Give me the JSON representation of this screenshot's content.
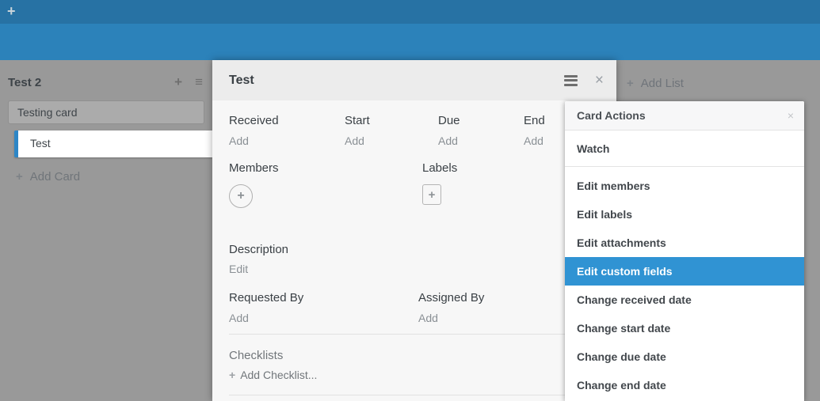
{
  "icons": {
    "plus": "+",
    "menu": "≡",
    "close": "×"
  },
  "board": {
    "list": {
      "title": "Test 2",
      "cards": [
        "Testing card",
        "Test"
      ],
      "add_card_label": "Add Card"
    },
    "add_list_label": "Add List"
  },
  "dialog": {
    "title": "Test",
    "date_fields": [
      {
        "label": "Received",
        "action": "Add"
      },
      {
        "label": "Start",
        "action": "Add"
      },
      {
        "label": "Due",
        "action": "Add"
      },
      {
        "label": "End",
        "action": "Add"
      }
    ],
    "members_label": "Members",
    "labels_label": "Labels",
    "description": {
      "label": "Description",
      "action": "Edit"
    },
    "requested_by": {
      "label": "Requested By",
      "action": "Add"
    },
    "assigned_by": {
      "label": "Assigned By",
      "action": "Add"
    },
    "checklists": {
      "label": "Checklists",
      "action": "Add Checklist..."
    }
  },
  "card_actions": {
    "title": "Card Actions",
    "watch_label": "Watch",
    "items": [
      "Edit members",
      "Edit labels",
      "Edit attachments",
      "Edit custom fields",
      "Change received date",
      "Change start date",
      "Change due date",
      "Change end date"
    ],
    "highlighted_item": "Edit custom fields",
    "highlighted_index": 3
  },
  "colors": {
    "top_bar": "#2772a4",
    "board_background": "#2c82ba",
    "overlay_gray": "#999999",
    "card_gray": "#ababab",
    "selected_card_border": "#2d86c6",
    "menu_highlight": "#3093d3",
    "dialog_header": "#ececec",
    "dialog_body": "#f7f7f7"
  }
}
